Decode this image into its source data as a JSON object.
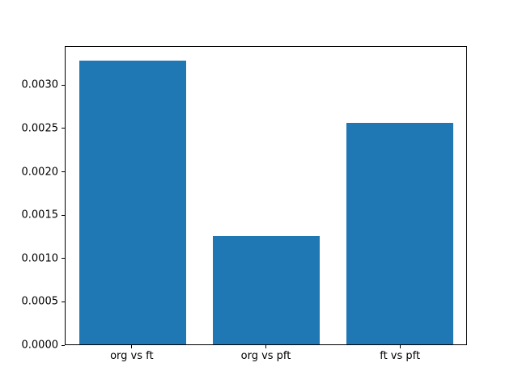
{
  "figure": {
    "background_color": "#ffffff",
    "spine_color": "#000000",
    "text_color": "#000000"
  },
  "chart_data": {
    "type": "bar",
    "title": "",
    "xlabel": "",
    "ylabel": "",
    "categories": [
      "org vs ft",
      "org vs pft",
      "ft vs pft"
    ],
    "values": [
      0.00329,
      0.00126,
      0.00257
    ],
    "bar_color": "#1f77b4",
    "bar_width_fraction": 0.8,
    "ylim": [
      0,
      0.00345
    ],
    "yticks": [
      0.0,
      0.0005,
      0.001,
      0.0015,
      0.002,
      0.0025,
      0.003
    ],
    "ytick_labels": [
      "0.0000",
      "0.0005",
      "0.0010",
      "0.0015",
      "0.0020",
      "0.0025",
      "0.0030"
    ],
    "grid": false,
    "legend": null
  }
}
